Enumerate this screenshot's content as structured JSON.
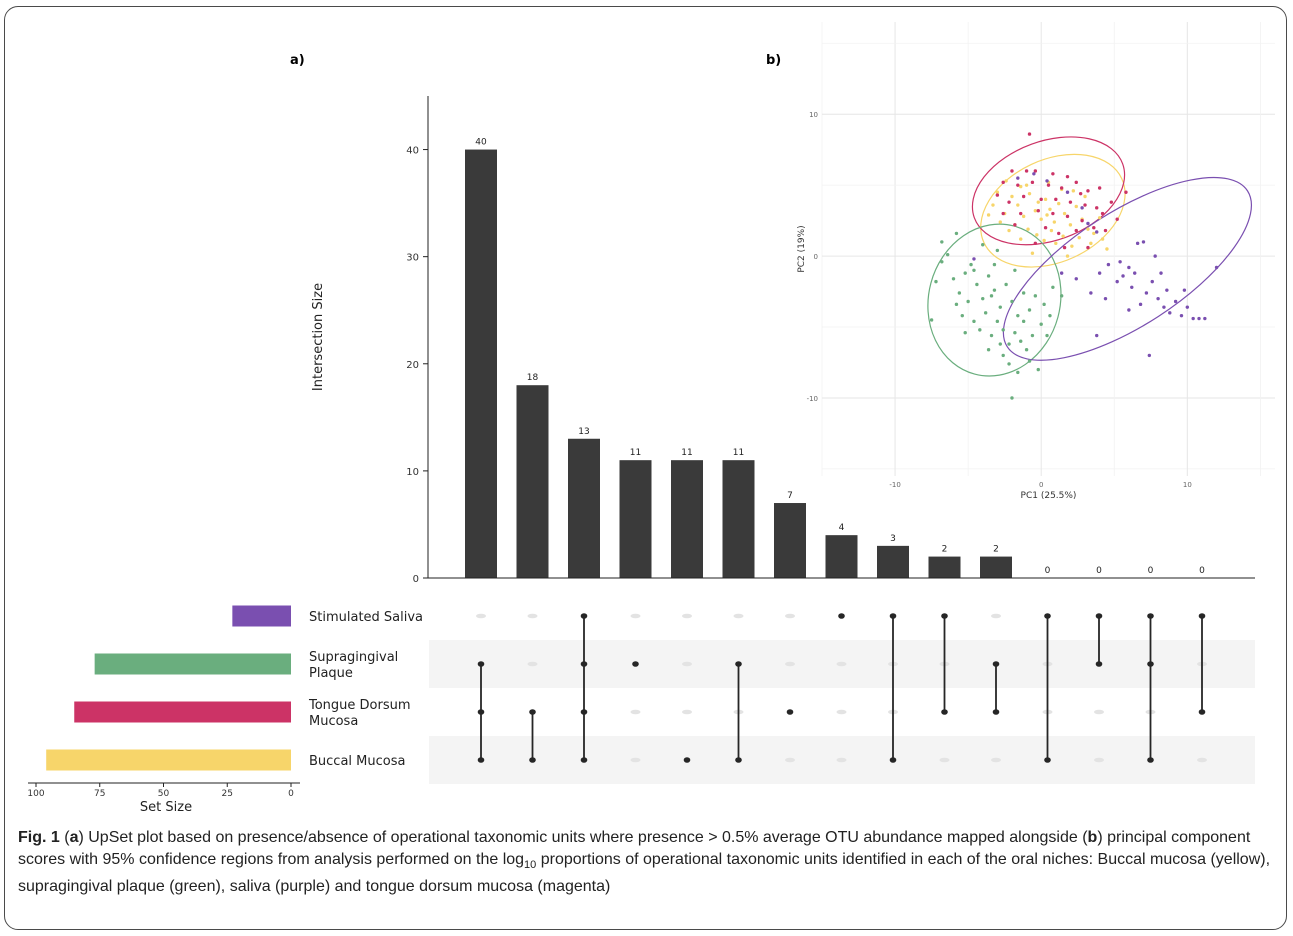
{
  "panel_labels": {
    "a": "a)",
    "b": "b)"
  },
  "caption": {
    "fig_label": "Fig. 1",
    "part1": " (",
    "a_letter": "a",
    "part2": ") UpSet plot based on presence/absence of operational taxonomic units where presence > 0.5% average OTU abundance mapped alongside (",
    "b_letter": "b",
    "part3": ") principal component scores with 95% confidence regions from analysis performed on the log",
    "sub": "10",
    "part4": " proportions of operational taxonomic units identified in each of the oral niches: Buccal mucosa (yellow), supragingival plaque (green), saliva (purple) and tongue dorsum mucosa (magenta)"
  },
  "colors": {
    "saliva": "#7a4fb0",
    "plaque": "#6aae7e",
    "tongue": "#cc3366",
    "buccal": "#f7d56a",
    "bar": "#3a3a3a",
    "dot_inactive": "#e3e3e3",
    "band": "#f4f4f4"
  },
  "chart_data": [
    {
      "type": "upset",
      "ylabel": "Intersection Size",
      "yticks": [
        0,
        10,
        20,
        30,
        40
      ],
      "ylim": [
        0,
        45
      ],
      "intersections": [
        {
          "size": 40,
          "sets": [
            "Supragingival Plaque",
            "Tongue Dorsum Mucosa",
            "Buccal Mucosa"
          ]
        },
        {
          "size": 18,
          "sets": [
            "Tongue Dorsum Mucosa",
            "Buccal Mucosa"
          ]
        },
        {
          "size": 13,
          "sets": [
            "Stimulated Saliva",
            "Supragingival Plaque",
            "Tongue Dorsum Mucosa",
            "Buccal Mucosa"
          ]
        },
        {
          "size": 11,
          "sets": [
            "Supragingival Plaque"
          ]
        },
        {
          "size": 11,
          "sets": [
            "Buccal Mucosa"
          ]
        },
        {
          "size": 11,
          "sets": [
            "Supragingival Plaque",
            "Buccal Mucosa"
          ]
        },
        {
          "size": 7,
          "sets": [
            "Tongue Dorsum Mucosa"
          ]
        },
        {
          "size": 4,
          "sets": [
            "Stimulated Saliva"
          ]
        },
        {
          "size": 3,
          "sets": [
            "Stimulated Saliva",
            "Buccal Mucosa"
          ]
        },
        {
          "size": 2,
          "sets": [
            "Stimulated Saliva",
            "Tongue Dorsum Mucosa"
          ]
        },
        {
          "size": 2,
          "sets": [
            "Supragingival Plaque",
            "Tongue Dorsum Mucosa"
          ]
        },
        {
          "size": 0,
          "sets": [
            "Stimulated Saliva",
            "Buccal Mucosa"
          ]
        },
        {
          "size": 0,
          "sets": [
            "Stimulated Saliva",
            "Supragingival Plaque"
          ]
        },
        {
          "size": 0,
          "sets": [
            "Stimulated Saliva",
            "Supragingival Plaque",
            "Buccal Mucosa"
          ]
        },
        {
          "size": 0,
          "sets": [
            "Stimulated Saliva",
            "Tongue Dorsum Mucosa"
          ]
        }
      ],
      "sets": [
        {
          "name": "Stimulated Saliva",
          "label_lines": [
            "Stimulated Saliva"
          ],
          "size": 23,
          "color": "#7a4fb0"
        },
        {
          "name": "Supragingival Plaque",
          "label_lines": [
            "Supragingival",
            "Plaque"
          ],
          "size": 77,
          "color": "#6aae7e"
        },
        {
          "name": "Tongue Dorsum Mucosa",
          "label_lines": [
            "Tongue Dorsum",
            "Mucosa"
          ],
          "size": 85,
          "color": "#cc3366"
        },
        {
          "name": "Buccal Mucosa",
          "label_lines": [
            "Buccal Mucosa"
          ],
          "size": 96,
          "color": "#f7d56a"
        }
      ],
      "set_size_xlabel": "Set Size",
      "set_size_ticks": [
        100,
        75,
        50,
        25,
        0
      ],
      "set_size_xlim": [
        0,
        103
      ]
    },
    {
      "type": "scatter",
      "xlabel": "PC1 (25.5%)",
      "ylabel": "PC2 (19%)",
      "xticks": [
        -10,
        0,
        10
      ],
      "yticks": [
        -10,
        0,
        10
      ],
      "xlim": [
        -15,
        16
      ],
      "ylim": [
        -15.5,
        16.5
      ],
      "grid": true,
      "groups": [
        {
          "name": "Buccal Mucosa",
          "color": "#f7d56a",
          "ellipse": {
            "cx": 0.8,
            "cy": 3.2,
            "rx": 5.2,
            "ry": 3.6,
            "angle": -25
          },
          "points": [
            [
              -3.0,
              4.5
            ],
            [
              -2.5,
              3.0
            ],
            [
              -2.0,
              4.2
            ],
            [
              -1.6,
              3.6
            ],
            [
              -1.2,
              2.8
            ],
            [
              -0.8,
              4.4
            ],
            [
              -0.4,
              3.2
            ],
            [
              0.0,
              2.6
            ],
            [
              0.3,
              4.0
            ],
            [
              0.6,
              3.3
            ],
            [
              0.9,
              2.4
            ],
            [
              1.2,
              3.7
            ],
            [
              1.6,
              3.0
            ],
            [
              2.0,
              2.2
            ],
            [
              2.4,
              3.5
            ],
            [
              2.8,
              2.6
            ],
            [
              3.2,
              1.9
            ],
            [
              3.6,
              1.6
            ],
            [
              4.0,
              2.7
            ],
            [
              4.2,
              1.2
            ],
            [
              4.5,
              0.5
            ],
            [
              -2.8,
              2.4
            ],
            [
              -2.2,
              1.8
            ],
            [
              -1.8,
              2.2
            ],
            [
              -1.4,
              1.2
            ],
            [
              -0.9,
              1.9
            ],
            [
              -0.3,
              1.5
            ],
            [
              0.2,
              1.1
            ],
            [
              0.7,
              1.8
            ],
            [
              1.0,
              0.9
            ],
            [
              1.5,
              1.4
            ],
            [
              2.1,
              0.7
            ],
            [
              2.6,
              1.3
            ],
            [
              -3.3,
              3.6
            ],
            [
              -3.6,
              2.9
            ],
            [
              -2.4,
              5.3
            ],
            [
              -1.0,
              5.0
            ],
            [
              0.5,
              5.2
            ],
            [
              1.4,
              4.7
            ],
            [
              -0.2,
              3.8
            ],
            [
              0.4,
              2.9
            ],
            [
              -1.4,
              4.9
            ],
            [
              3.0,
              4.2
            ],
            [
              2.2,
              4.6
            ],
            [
              -0.6,
              0.2
            ],
            [
              1.8,
              0.0
            ],
            [
              3.4,
              0.9
            ]
          ]
        },
        {
          "name": "Tongue Dorsum Mucosa",
          "color": "#cc3366",
          "ellipse": {
            "cx": 0.5,
            "cy": 4.6,
            "rx": 5.4,
            "ry": 3.5,
            "angle": -20
          },
          "points": [
            [
              -0.8,
              8.6
            ],
            [
              -2.0,
              6.0
            ],
            [
              -1.0,
              6.0
            ],
            [
              -0.4,
              6.0
            ],
            [
              0.8,
              5.8
            ],
            [
              1.8,
              5.6
            ],
            [
              -2.6,
              5.2
            ],
            [
              -1.6,
              5.0
            ],
            [
              -0.6,
              5.2
            ],
            [
              0.5,
              5.0
            ],
            [
              1.4,
              4.8
            ],
            [
              2.4,
              5.2
            ],
            [
              3.2,
              4.6
            ],
            [
              -3.0,
              4.3
            ],
            [
              -2.2,
              3.8
            ],
            [
              -1.2,
              4.2
            ],
            [
              0.0,
              4.0
            ],
            [
              1.0,
              4.0
            ],
            [
              2.0,
              3.8
            ],
            [
              3.0,
              3.6
            ],
            [
              3.8,
              3.4
            ],
            [
              4.2,
              3.0
            ],
            [
              -2.6,
              3.0
            ],
            [
              -1.4,
              3.0
            ],
            [
              -0.2,
              3.2
            ],
            [
              0.8,
              3.0
            ],
            [
              1.8,
              2.8
            ],
            [
              2.8,
              2.5
            ],
            [
              3.6,
              2.0
            ],
            [
              4.4,
              1.8
            ],
            [
              -1.8,
              2.2
            ],
            [
              0.3,
              2.0
            ],
            [
              1.2,
              1.6
            ],
            [
              2.4,
              1.8
            ],
            [
              4.8,
              3.8
            ],
            [
              5.2,
              2.6
            ],
            [
              5.8,
              4.5
            ],
            [
              -0.4,
              0.9
            ],
            [
              1.6,
              0.6
            ],
            [
              3.2,
              0.6
            ],
            [
              2.7,
              4.4
            ],
            [
              4.0,
              4.8
            ]
          ]
        },
        {
          "name": "Supragingival Plaque",
          "color": "#6aae7e",
          "ellipse": {
            "cx": -3.2,
            "cy": -3.1,
            "rx": 4.5,
            "ry": 5.4,
            "angle": 15
          },
          "points": [
            [
              -7.5,
              -4.5
            ],
            [
              -7.2,
              -1.8
            ],
            [
              -6.8,
              -0.4
            ],
            [
              -6.4,
              0.1
            ],
            [
              -6.0,
              -1.6
            ],
            [
              -5.6,
              -2.6
            ],
            [
              -5.2,
              -1.2
            ],
            [
              -4.8,
              -0.6
            ],
            [
              -4.4,
              -2.0
            ],
            [
              -4.0,
              -3.0
            ],
            [
              -3.6,
              -1.4
            ],
            [
              -3.2,
              -2.4
            ],
            [
              -2.8,
              -3.6
            ],
            [
              -2.4,
              -2.0
            ],
            [
              -2.0,
              -3.2
            ],
            [
              -1.6,
              -4.2
            ],
            [
              -1.2,
              -2.6
            ],
            [
              -0.8,
              -3.8
            ],
            [
              -0.4,
              -2.8
            ],
            [
              0.0,
              -4.8
            ],
            [
              0.4,
              -5.6
            ],
            [
              -5.8,
              -3.4
            ],
            [
              -5.4,
              -4.2
            ],
            [
              -5.0,
              -3.2
            ],
            [
              -4.6,
              -4.6
            ],
            [
              -4.2,
              -5.2
            ],
            [
              -3.8,
              -4.0
            ],
            [
              -3.4,
              -5.6
            ],
            [
              -3.0,
              -4.6
            ],
            [
              -2.6,
              -5.2
            ],
            [
              -2.2,
              -6.2
            ],
            [
              -1.8,
              -5.4
            ],
            [
              -1.4,
              -6.0
            ],
            [
              -1.0,
              -6.6
            ],
            [
              -0.6,
              -5.6
            ],
            [
              -2.6,
              -7.0
            ],
            [
              -2.2,
              -7.6
            ],
            [
              -1.6,
              -8.2
            ],
            [
              -0.8,
              -7.4
            ],
            [
              -0.2,
              -8.0
            ],
            [
              -2.0,
              -10.0
            ],
            [
              0.2,
              -3.4
            ],
            [
              0.8,
              -2.2
            ],
            [
              1.4,
              -2.8
            ],
            [
              -4.0,
              0.8
            ],
            [
              -3.0,
              0.4
            ],
            [
              -5.8,
              1.6
            ],
            [
              -6.8,
              1.0
            ],
            [
              -3.2,
              -0.6
            ],
            [
              -1.8,
              -1.0
            ],
            [
              -4.6,
              -1.0
            ],
            [
              -2.8,
              -6.2
            ],
            [
              -3.6,
              -6.6
            ],
            [
              -1.2,
              -4.6
            ],
            [
              0.6,
              -4.2
            ],
            [
              -3.4,
              -2.8
            ],
            [
              -5.2,
              -5.4
            ]
          ]
        },
        {
          "name": "Stimulated Saliva",
          "color": "#7a4fb0",
          "ellipse": {
            "cx": 5.9,
            "cy": -0.9,
            "rx": 9.8,
            "ry": 4.0,
            "angle": -33
          },
          "points": [
            [
              -4.6,
              -0.2
            ],
            [
              -1.6,
              5.5
            ],
            [
              -0.5,
              5.8
            ],
            [
              0.4,
              5.3
            ],
            [
              1.8,
              4.5
            ],
            [
              2.8,
              3.4
            ],
            [
              3.2,
              2.3
            ],
            [
              3.8,
              1.7
            ],
            [
              1.4,
              -1.2
            ],
            [
              2.4,
              -1.6
            ],
            [
              3.4,
              -2.6
            ],
            [
              4.0,
              -1.2
            ],
            [
              4.6,
              -0.6
            ],
            [
              5.2,
              -1.8
            ],
            [
              5.6,
              -1.4
            ],
            [
              6.0,
              -0.8
            ],
            [
              6.2,
              -2.2
            ],
            [
              6.6,
              0.9
            ],
            [
              6.8,
              -3.4
            ],
            [
              7.2,
              -2.6
            ],
            [
              7.6,
              -1.8
            ],
            [
              7.8,
              0.0
            ],
            [
              8.0,
              -3.0
            ],
            [
              8.4,
              -3.6
            ],
            [
              8.6,
              -2.4
            ],
            [
              8.8,
              -4.0
            ],
            [
              9.2,
              -3.2
            ],
            [
              9.6,
              -4.2
            ],
            [
              10.0,
              -3.6
            ],
            [
              10.4,
              -4.4
            ],
            [
              10.8,
              -4.4
            ],
            [
              11.2,
              -4.4
            ],
            [
              12.0,
              -0.8
            ],
            [
              7.4,
              -7.0
            ],
            [
              3.8,
              -5.6
            ],
            [
              6.0,
              -3.8
            ],
            [
              7.0,
              1.0
            ],
            [
              5.4,
              -0.4
            ],
            [
              4.4,
              -3.0
            ],
            [
              8.2,
              -1.2
            ],
            [
              9.8,
              -2.4
            ],
            [
              6.4,
              -1.2
            ]
          ]
        }
      ]
    }
  ]
}
